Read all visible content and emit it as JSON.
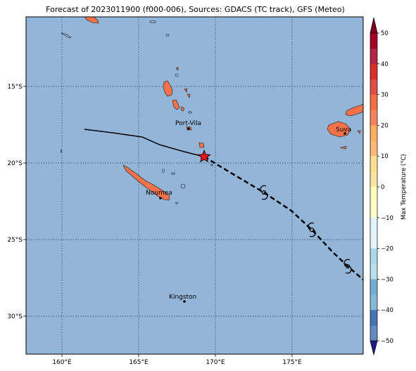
{
  "title": "Forecast of 2023011900 (f000-006), Sources: GDACS (TC track), GFS (Meteo)",
  "axes": {
    "lat_ticks": [
      "15°S",
      "20°S",
      "25°S",
      "30°S"
    ],
    "lon_ticks": [
      "160°E",
      "165°E",
      "170°E",
      "175°E"
    ]
  },
  "cities": [
    {
      "name": "Port-Vila"
    },
    {
      "name": "Suva"
    },
    {
      "name": "Noumea"
    },
    {
      "name": "Kingston"
    }
  ],
  "colorbar": {
    "label": "Max Temperature (°C)",
    "ticks": [
      "50",
      "40",
      "30",
      "20",
      "10",
      "0",
      "−10",
      "−20",
      "−30",
      "−40",
      "−50"
    ],
    "colors": [
      "#a50026",
      "#d73027",
      "#f46d43",
      "#fdae61",
      "#fee090",
      "#ffffbf",
      "#e0f3f8",
      "#abd9e9",
      "#74add1",
      "#4575b4",
      "#313695"
    ]
  },
  "colors": {
    "ocean": "#92b5d8",
    "land": "#f4724a",
    "track": "#000000",
    "marker": "#e8141e"
  }
}
